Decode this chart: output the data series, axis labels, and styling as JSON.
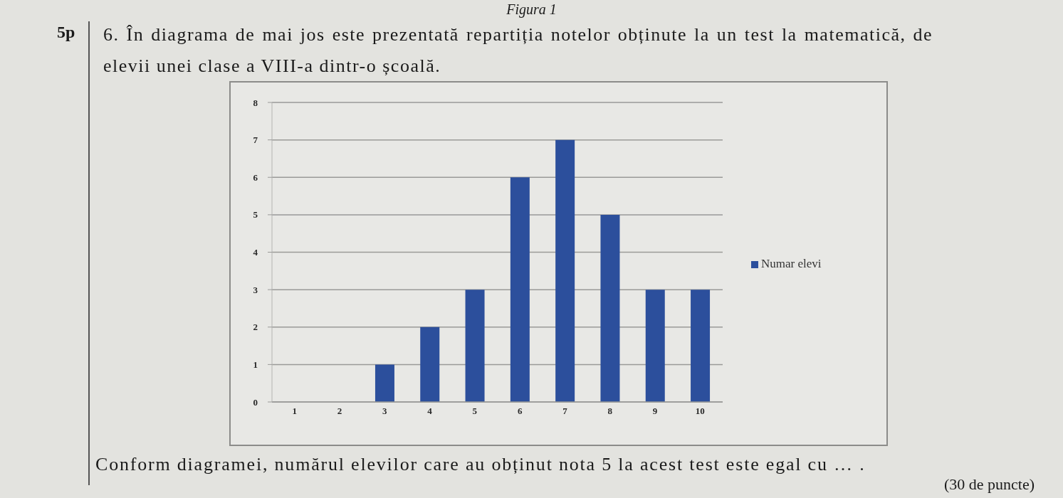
{
  "chart_data": {
    "type": "bar",
    "title": "Figura 1",
    "subtitle": "6. În diagrama de mai jos este prezentată repartiția notelor obținute la un test la matematică, de elevii unei clase a VIII-a dintr-o școală.",
    "annotations": [
      "5p",
      "Conform diagramei, numărul elevilor care au obținut nota 5 la acest test este egal cu … .",
      "(30 de puncte)"
    ],
    "categories": [
      "1",
      "2",
      "3",
      "4",
      "5",
      "6",
      "7",
      "8",
      "9",
      "10"
    ],
    "series": [
      {
        "name": "Numar elevi",
        "color": "#2c4f9c",
        "values": [
          0,
          0,
          1,
          2,
          3,
          6,
          7,
          5,
          3,
          3
        ]
      }
    ],
    "ylim": [
      0,
      8
    ],
    "yticks": [
      0,
      1,
      2,
      3,
      4,
      5,
      6,
      7,
      8
    ],
    "grid": "y",
    "legend": "right"
  }
}
